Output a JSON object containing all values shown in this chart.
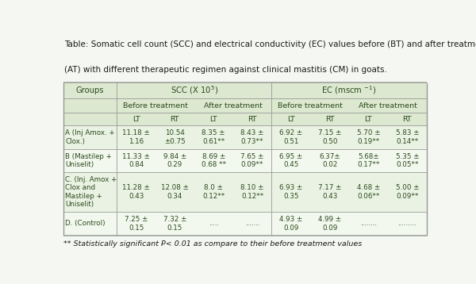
{
  "title_line1": "Table: Somatic cell count (SCC) and electrical conductivity (EC) values before (BT) and after treatment",
  "title_line2": "(AT) with different therapeutic regimen against clinical mastitis (CM) in goats.",
  "footnote": "** Statistically significant P< 0.01 as compare to their before treatment values",
  "bg_color": "#f5f8f2",
  "header_bg": "#dce9d0",
  "row_bg_A": "#eaf3e3",
  "row_bg_B": "#f2f8ee",
  "row_bg_C": "#eaf3e3",
  "row_bg_D": "#f2f8ee",
  "text_color": "#2d4a1e",
  "border_color": "#aaaaaa",
  "sub_headers": [
    "Before treatment",
    "After treatment",
    "Before treatment",
    "After treatment"
  ],
  "lt_rt": [
    "LT",
    "RT",
    "LT",
    "RT",
    "LT",
    "RT",
    "LT",
    "RT"
  ],
  "rows": [
    {
      "group": "A (Inj Amox. +\nClox.)",
      "values": [
        "11.18 ±\n1.16",
        "10.54\n±0.75",
        "8.35 ±\n0.61**",
        "8.43 ±\n0.73**",
        "6.92 ±\n0.51",
        "7.15 ±\n0.50",
        "5.70 ±\n0.19**",
        "5.83 ±\n0.14**"
      ]
    },
    {
      "group": "B (Mastilep +\nUniselit)",
      "values": [
        "11.33 ±\n0.84",
        "9.84 ±\n0.29",
        "8.69 ±\n0.68 **",
        "7.65 ±\n0.09**",
        "6.95 ±\n0.45",
        "6.37±\n0.02",
        "5.68±\n0.17**",
        "5.35 ±\n0.05**"
      ]
    },
    {
      "group": "C. (Inj. Amox +\nClox and\nMastilep +\nUniselit)",
      "values": [
        "11.28 ±\n0.43",
        "12.08 ±\n0.34",
        "8.0 ±\n0.12**",
        "8.10 ±\n0.12**",
        "6.93 ±\n0.35",
        "7.17 ±\n0.43",
        "4.68 ±\n0.06**",
        "5.00 ±\n0.09**"
      ]
    },
    {
      "group": "D. (Control)",
      "values": [
        "7.25 ±\n0.15",
        "7.32 ±\n0.15",
        ".....",
        ".......",
        "4.93 ±\n0.09",
        "4.99 ±\n0.09",
        "........",
        "........."
      ]
    }
  ]
}
